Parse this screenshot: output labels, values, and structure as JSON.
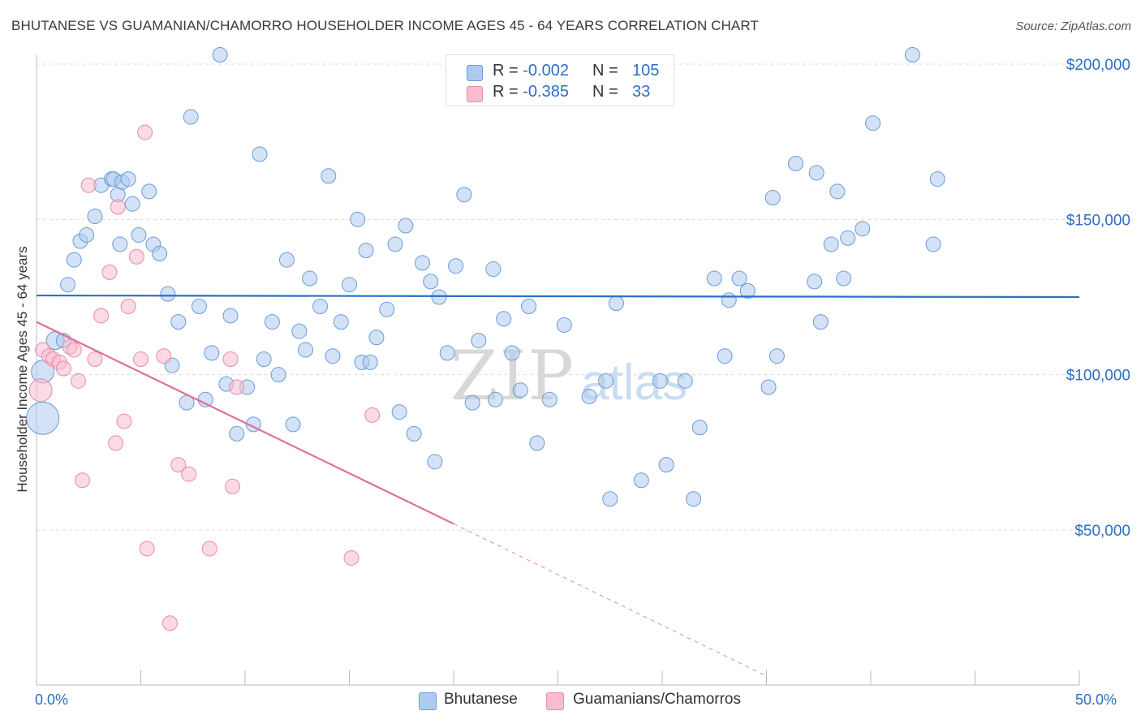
{
  "title": "BHUTANESE VS GUAMANIAN/CHAMORRO HOUSEHOLDER INCOME AGES 45 - 64 YEARS CORRELATION CHART",
  "source": "Source: ZipAtlas.com",
  "watermark": "ZIPatlas",
  "legend": {
    "rows": [
      {
        "r_label": "R =",
        "r_value": "-0.002",
        "n_label": "N =",
        "n_value": "105",
        "color": "#aecbef",
        "stroke": "#6c9bd4"
      },
      {
        "r_label": "R =",
        "r_value": "-0.385",
        "n_label": "N =",
        "n_value": "33",
        "color": "#f8bcd0",
        "stroke": "#e98aaa"
      }
    ]
  },
  "bottom_legend": [
    {
      "label": "Bhutanese",
      "color": "#aecbef",
      "stroke": "#6c9bd4"
    },
    {
      "label": "Guamanians/Chamorros",
      "color": "#f8bcd0",
      "stroke": "#e98aaa"
    }
  ],
  "chart_data": {
    "type": "scatter",
    "title": "BHUTANESE VS GUAMANIAN/CHAMORRO HOUSEHOLDER INCOME AGES 45 - 64 YEARS CORRELATION CHART",
    "xlabel": "",
    "ylabel": "Householder Income Ages 45 - 64 years",
    "xlim": [
      0,
      50
    ],
    "ylim": [
      0,
      200000
    ],
    "x_tick_labels": [
      "0.0%",
      "50.0%"
    ],
    "y_ticks": [
      50000,
      100000,
      150000,
      200000
    ],
    "y_tick_labels": [
      "$50,000",
      "$100,000",
      "$150,000",
      "$200,000"
    ],
    "grid": true,
    "series": [
      {
        "name": "Bhutanese",
        "color": "#aecbef",
        "stroke": "#6c9bd4",
        "trend": {
          "x": [
            0,
            50
          ],
          "y": [
            125500,
            125000
          ],
          "style": "solid",
          "color": "#2d6fc5"
        },
        "points": [
          [
            0.3,
            86000,
            20
          ],
          [
            0.3,
            101000,
            14
          ],
          [
            0.9,
            111000,
            11
          ],
          [
            1.3,
            111000,
            9
          ],
          [
            1.5,
            129000,
            9
          ],
          [
            1.8,
            137000,
            9
          ],
          [
            2.1,
            143000,
            9
          ],
          [
            2.4,
            145000,
            9
          ],
          [
            2.8,
            151000,
            9
          ],
          [
            3.1,
            161000,
            9
          ],
          [
            3.6,
            163000,
            9
          ],
          [
            3.9,
            158000,
            9
          ],
          [
            3.7,
            163000,
            9
          ],
          [
            4.1,
            162000,
            9
          ],
          [
            4.0,
            142000,
            9
          ],
          [
            4.4,
            163000,
            9
          ],
          [
            4.6,
            155000,
            9
          ],
          [
            4.9,
            145000,
            9
          ],
          [
            5.4,
            159000,
            9
          ],
          [
            5.6,
            142000,
            9
          ],
          [
            5.9,
            139000,
            9
          ],
          [
            6.3,
            126000,
            9
          ],
          [
            6.5,
            103000,
            9
          ],
          [
            6.8,
            117000,
            9
          ],
          [
            7.2,
            91000,
            9
          ],
          [
            7.4,
            183000,
            9
          ],
          [
            7.8,
            122000,
            9
          ],
          [
            8.1,
            92000,
            9
          ],
          [
            8.4,
            107000,
            9
          ],
          [
            8.8,
            203000,
            9
          ],
          [
            9.1,
            97000,
            9
          ],
          [
            9.3,
            119000,
            9
          ],
          [
            9.6,
            81000,
            9
          ],
          [
            10.1,
            96000,
            9
          ],
          [
            10.4,
            84000,
            9
          ],
          [
            10.7,
            171000,
            9
          ],
          [
            10.9,
            105000,
            9
          ],
          [
            11.3,
            117000,
            9
          ],
          [
            11.6,
            100000,
            9
          ],
          [
            12.0,
            137000,
            9
          ],
          [
            12.3,
            84000,
            9
          ],
          [
            12.6,
            114000,
            9
          ],
          [
            12.9,
            108000,
            9
          ],
          [
            13.1,
            131000,
            9
          ],
          [
            13.6,
            122000,
            9
          ],
          [
            14.0,
            164000,
            9
          ],
          [
            14.2,
            106000,
            9
          ],
          [
            14.6,
            117000,
            9
          ],
          [
            15.0,
            129000,
            9
          ],
          [
            15.6,
            104000,
            9
          ],
          [
            15.4,
            150000,
            9
          ],
          [
            15.8,
            140000,
            9
          ],
          [
            16.0,
            104000,
            9
          ],
          [
            16.3,
            112000,
            9
          ],
          [
            16.8,
            121000,
            9
          ],
          [
            17.4,
            88000,
            9
          ],
          [
            17.2,
            142000,
            9
          ],
          [
            17.7,
            148000,
            9
          ],
          [
            18.1,
            81000,
            9
          ],
          [
            18.5,
            136000,
            9
          ],
          [
            18.9,
            130000,
            9
          ],
          [
            19.1,
            72000,
            9
          ],
          [
            19.3,
            125000,
            9
          ],
          [
            19.7,
            107000,
            9
          ],
          [
            20.1,
            135000,
            9
          ],
          [
            20.5,
            158000,
            9
          ],
          [
            20.9,
            91000,
            9
          ],
          [
            21.2,
            111000,
            9
          ],
          [
            21.9,
            134000,
            9
          ],
          [
            22.0,
            92000,
            9
          ],
          [
            22.4,
            118000,
            9
          ],
          [
            22.8,
            107000,
            9
          ],
          [
            23.2,
            95000,
            9
          ],
          [
            23.6,
            122000,
            9
          ],
          [
            24.0,
            78000,
            9
          ],
          [
            24.6,
            92000,
            9
          ],
          [
            25.3,
            116000,
            9
          ],
          [
            26.5,
            93000,
            9
          ],
          [
            27.3,
            98000,
            9
          ],
          [
            27.5,
            60000,
            9
          ],
          [
            27.8,
            123000,
            9
          ],
          [
            29.0,
            66000,
            9
          ],
          [
            29.9,
            98000,
            9
          ],
          [
            30.2,
            71000,
            9
          ],
          [
            31.1,
            98000,
            9
          ],
          [
            31.5,
            60000,
            9
          ],
          [
            31.8,
            83000,
            9
          ],
          [
            32.5,
            131000,
            9
          ],
          [
            33.0,
            106000,
            9
          ],
          [
            33.2,
            124000,
            9
          ],
          [
            33.7,
            131000,
            9
          ],
          [
            34.1,
            127000,
            9
          ],
          [
            35.1,
            96000,
            9
          ],
          [
            35.5,
            106000,
            9
          ],
          [
            35.3,
            157000,
            9
          ],
          [
            36.4,
            168000,
            9
          ],
          [
            37.4,
            165000,
            9
          ],
          [
            37.3,
            130000,
            9
          ],
          [
            37.6,
            117000,
            9
          ],
          [
            38.1,
            142000,
            9
          ],
          [
            38.4,
            159000,
            9
          ],
          [
            38.7,
            131000,
            9
          ],
          [
            38.9,
            144000,
            9
          ],
          [
            39.6,
            147000,
            9
          ],
          [
            40.1,
            181000,
            9
          ],
          [
            42.0,
            203000,
            9
          ],
          [
            43.0,
            142000,
            9
          ],
          [
            43.2,
            163000,
            9
          ]
        ]
      },
      {
        "name": "Guamanians/Chamorros",
        "color": "#f8bcd0",
        "stroke": "#e98aaa",
        "trend": {
          "x": [
            0,
            20
          ],
          "y": [
            117000,
            52000
          ],
          "style": "solid",
          "color": "#e16f98",
          "dash_to": [
            35,
            3000
          ]
        },
        "points": [
          [
            0.2,
            95000,
            14
          ],
          [
            0.3,
            108000,
            9
          ],
          [
            0.6,
            106000,
            9
          ],
          [
            0.8,
            105000,
            9
          ],
          [
            1.1,
            104000,
            9
          ],
          [
            1.3,
            102000,
            9
          ],
          [
            1.6,
            109000,
            9
          ],
          [
            1.8,
            108000,
            9
          ],
          [
            2.0,
            98000,
            9
          ],
          [
            2.2,
            66000,
            9
          ],
          [
            2.5,
            161000,
            9
          ],
          [
            2.8,
            105000,
            9
          ],
          [
            3.1,
            119000,
            9
          ],
          [
            3.5,
            133000,
            9
          ],
          [
            3.8,
            78000,
            9
          ],
          [
            3.9,
            154000,
            9
          ],
          [
            4.2,
            85000,
            9
          ],
          [
            4.4,
            122000,
            9
          ],
          [
            4.8,
            138000,
            9
          ],
          [
            5.0,
            105000,
            9
          ],
          [
            5.2,
            178000,
            9
          ],
          [
            5.3,
            44000,
            9
          ],
          [
            6.1,
            106000,
            9
          ],
          [
            6.4,
            20000,
            9
          ],
          [
            6.8,
            71000,
            9
          ],
          [
            7.3,
            68000,
            9
          ],
          [
            8.3,
            44000,
            9
          ],
          [
            9.4,
            64000,
            9
          ],
          [
            9.3,
            105000,
            9
          ],
          [
            9.6,
            96000,
            9
          ],
          [
            15.1,
            41000,
            9
          ],
          [
            16.1,
            87000,
            9
          ]
        ]
      }
    ]
  }
}
